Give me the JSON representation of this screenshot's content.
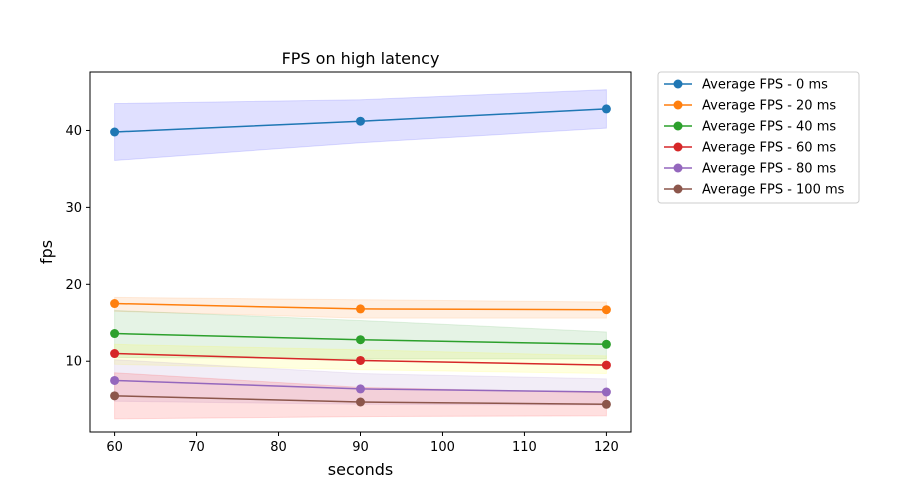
{
  "chart_data": {
    "type": "line",
    "title": "FPS on high latency",
    "xlabel": "seconds",
    "ylabel": "fps",
    "x": [
      60,
      90,
      120
    ],
    "xlim": [
      57,
      123
    ],
    "ylim": [
      0.8,
      47.6
    ],
    "xticks": [
      60,
      70,
      80,
      90,
      100,
      110,
      120
    ],
    "yticks": [
      10,
      20,
      30,
      40
    ],
    "grid": false,
    "legend_position": "outside-right",
    "series": [
      {
        "name": "Average FPS - 0 ms",
        "color": "#1f77b4",
        "values": [
          39.8,
          41.2,
          42.8
        ],
        "band_low": [
          36.1,
          38.4,
          40.3
        ],
        "band_high": [
          43.5,
          44.0,
          45.3
        ],
        "band_color": "#0000ff"
      },
      {
        "name": "Average FPS - 20 ms",
        "color": "#ff7f0e",
        "values": [
          17.5,
          16.8,
          16.7
        ],
        "band_low": [
          16.5,
          15.6,
          15.6
        ],
        "band_high": [
          18.3,
          18.0,
          17.7
        ],
        "band_color": "#ff7f0e"
      },
      {
        "name": "Average FPS - 40 ms",
        "color": "#2ca02c",
        "values": [
          13.6,
          12.8,
          12.2
        ],
        "band_low": [
          10.5,
          10.3,
          10.3
        ],
        "band_high": [
          16.6,
          15.3,
          13.8
        ],
        "band_color": "#2ca02c"
      },
      {
        "name": "Average FPS - 60 ms",
        "color": "#d62728",
        "values": [
          11.0,
          10.1,
          9.5
        ],
        "band_low": [
          9.6,
          8.9,
          8.4
        ],
        "band_high": [
          12.2,
          11.5,
          10.7
        ],
        "band_color": "#ffff00"
      },
      {
        "name": "Average FPS - 80 ms",
        "color": "#9467bd",
        "values": [
          7.5,
          6.4,
          6.0
        ],
        "band_low": [
          4.8,
          4.4,
          4.3
        ],
        "band_high": [
          10.2,
          8.4,
          7.7
        ],
        "band_color": "#9467bd"
      },
      {
        "name": "Average FPS - 100 ms",
        "color": "#8c564b",
        "values": [
          5.5,
          4.7,
          4.4
        ],
        "band_low": [
          2.5,
          2.8,
          2.9
        ],
        "band_high": [
          8.5,
          6.6,
          5.9
        ],
        "band_color": "#ff0000"
      }
    ]
  }
}
